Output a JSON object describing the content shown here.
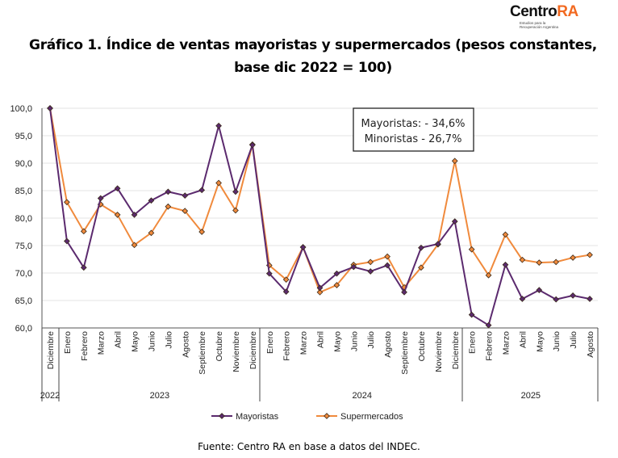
{
  "logo": {
    "text_main": "Centro",
    "text_accent": "RA",
    "tagline": "Estudios para la Recuperación Argentina"
  },
  "title": "Gráfico 1. Índice de ventas mayoristas y supermercados (pesos constantes, base dic 2022 = 100)",
  "source": "Fuente: Centro RA en base a datos del INDEC.",
  "chart_data": {
    "type": "line",
    "title": "Gráfico 1. Índice de ventas mayoristas y supermercados (pesos constantes, base dic 2022 = 100)",
    "xlabel": "",
    "ylabel": "",
    "ylim": [
      60,
      100
    ],
    "yticks": [
      "60,0",
      "65,0",
      "70,0",
      "75,0",
      "80,0",
      "85,0",
      "90,0",
      "95,0",
      "100,0"
    ],
    "grid": true,
    "legend_position": "bottom",
    "categories": [
      "Diciembre",
      "Enero",
      "Febrero",
      "Marzo",
      "Abril",
      "Mayo",
      "Junio",
      "Julio",
      "Agosto",
      "Septiembre",
      "Octubre",
      "Noviembre",
      "Diciembre",
      "Enero",
      "Febrero",
      "Marzo",
      "Abril",
      "Mayo",
      "Junio",
      "Julio",
      "Agosto",
      "Septiembre",
      "Octubre",
      "Noviembre",
      "Diciembre",
      "Enero",
      "Febrero",
      "Marzo",
      "Abril",
      "Mayo",
      "Junio",
      "Julio",
      "Agosto"
    ],
    "years": [
      {
        "label": "2022",
        "start": 0,
        "end": 0
      },
      {
        "label": "2023",
        "start": 1,
        "end": 12
      },
      {
        "label": "2024",
        "start": 13,
        "end": 24
      },
      {
        "label": "2025",
        "start": 25,
        "end": 32
      }
    ],
    "series": [
      {
        "name": "Mayoristas",
        "color": "#5b2a6e",
        "values": [
          100.0,
          75.8,
          71.0,
          83.6,
          85.4,
          80.6,
          83.2,
          84.8,
          84.1,
          85.1,
          96.8,
          84.8,
          93.3,
          69.9,
          66.6,
          74.7,
          67.3,
          69.9,
          71.1,
          70.3,
          71.4,
          66.5,
          74.6,
          75.3,
          79.4,
          62.4,
          60.5,
          71.5,
          65.3,
          66.9,
          65.2,
          65.9,
          65.3
        ]
      },
      {
        "name": "Supermercados",
        "color": "#f08a3c",
        "values": [
          100.0,
          82.9,
          77.6,
          82.5,
          80.6,
          75.1,
          77.3,
          82.1,
          81.3,
          77.5,
          86.4,
          81.4,
          93.4,
          71.4,
          68.8,
          74.7,
          66.5,
          67.8,
          71.5,
          72.0,
          73.0,
          67.4,
          71.0,
          75.2,
          90.4,
          74.3,
          69.6,
          77.0,
          72.4,
          71.9,
          72.0,
          72.8,
          73.3
        ]
      }
    ],
    "annotation": {
      "lines": [
        "Mayoristas: - 34,6%",
        "Minoristas - 26,7%"
      ]
    }
  }
}
